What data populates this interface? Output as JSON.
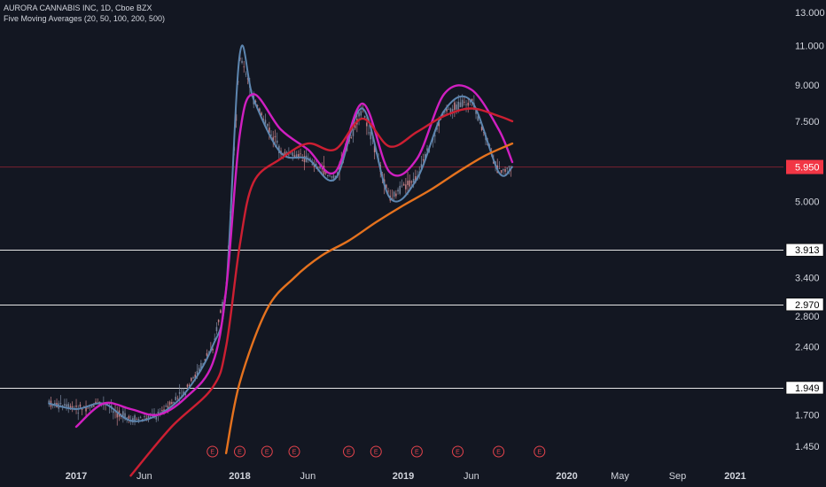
{
  "header": {
    "title": "AURORA CANNABIS INC, 1D, Cboe BZX",
    "indicator": "Five Moving Averages (20, 50, 100, 200, 500)"
  },
  "colors": {
    "background": "#131722",
    "axis_text": "#d1d4dc",
    "up_candle": "#7d8aa2",
    "down_candle": "#c9848a",
    "ma20": "#5d86b0",
    "ma50": "#d01fc1",
    "ma100": "#cc1f32",
    "ma200": "#e5721e",
    "hline": "#e6e6e6",
    "price_line": "#7a2230",
    "price_badge": "#f23645",
    "earnings": "#e4434c"
  },
  "chart_data": {
    "type": "line",
    "scale": "log",
    "x_ticks": [
      "2017",
      "Jun",
      "2018",
      "Jun",
      "2019",
      "Jun",
      "2020",
      "May",
      "Sep",
      "2021"
    ],
    "y_ticks": [
      "13.000",
      "11.000",
      "9.000",
      "7.500",
      "6.000",
      "5.000",
      "3.913",
      "3.400",
      "2.970",
      "2.800",
      "2.400",
      "1.949",
      "1.700",
      "1.450"
    ],
    "last_price": "5.950",
    "horizontal_levels": [
      "3.913",
      "2.970",
      "1.949"
    ],
    "earnings_marker": "E",
    "earnings_dates": [
      "2017-11",
      "2018-01",
      "2018-03",
      "2018-05",
      "2018-09",
      "2018-11",
      "2019-02",
      "2019-05",
      "2019-08",
      "2019-11"
    ],
    "series": [
      {
        "x": [
          "2016-11",
          "2017-01",
          "2017-03",
          "2017-05",
          "2017-07",
          "2017-09",
          "2017-11",
          "2017-12",
          "2018-01",
          "2018-02",
          "2018-04",
          "2018-06",
          "2018-08",
          "2018-10",
          "2018-12",
          "2019-02",
          "2019-04",
          "2019-06",
          "2019-08",
          "2019-09"
        ],
        "values": [
          1.8,
          1.75,
          1.8,
          1.65,
          1.7,
          1.9,
          2.4,
          3.2,
          10.5,
          8.4,
          6.4,
          6.2,
          5.6,
          8.0,
          5.1,
          5.6,
          7.9,
          8.3,
          5.8,
          5.95
        ]
      },
      {
        "x": [
          "2017-01",
          "2017-03",
          "2017-05",
          "2017-07",
          "2017-09",
          "2017-11",
          "2017-12",
          "2018-01",
          "2018-02",
          "2018-04",
          "2018-06",
          "2018-08",
          "2018-10",
          "2018-12",
          "2019-02",
          "2019-04",
          "2019-06",
          "2019-08",
          "2019-09"
        ],
        "values": [
          1.6,
          1.8,
          1.75,
          1.7,
          1.85,
          2.2,
          3.2,
          7.0,
          8.6,
          7.2,
          6.5,
          5.8,
          8.2,
          5.8,
          6.2,
          8.6,
          8.8,
          7.2,
          6.1
        ]
      },
      {
        "x": [
          "2017-05",
          "2017-08",
          "2017-11",
          "2017-12",
          "2018-01",
          "2018-02",
          "2018-04",
          "2018-06",
          "2018-08",
          "2018-10",
          "2018-12",
          "2019-02",
          "2019-04",
          "2019-06",
          "2019-08",
          "2019-09"
        ],
        "values": [
          1.25,
          1.6,
          1.95,
          2.4,
          4.0,
          5.5,
          6.2,
          6.7,
          6.5,
          7.6,
          6.6,
          7.1,
          7.7,
          8.0,
          7.7,
          7.5
        ]
      },
      {
        "x": [
          "2017-12",
          "2018-01",
          "2018-03",
          "2018-05",
          "2018-07",
          "2018-09",
          "2018-11",
          "2019-01",
          "2019-03",
          "2019-05",
          "2019-07",
          "2019-09"
        ],
        "values": [
          1.4,
          2.0,
          2.9,
          3.4,
          3.8,
          4.1,
          4.5,
          4.9,
          5.3,
          5.8,
          6.3,
          6.7
        ]
      }
    ]
  }
}
